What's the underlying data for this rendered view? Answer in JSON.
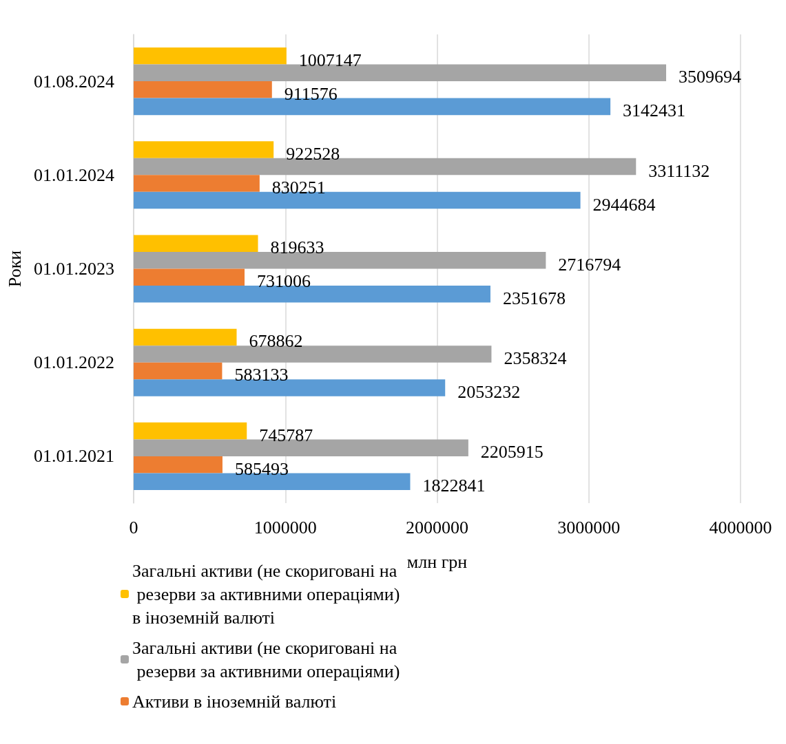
{
  "chart_data": {
    "type": "bar",
    "orientation": "horizontal",
    "xlabel": "млн грн",
    "ylabel": "Роки",
    "categories": [
      "01.08.2024",
      "01.01.2024",
      "01.01.2023",
      "01.01.2022",
      "01.01.2021"
    ],
    "series": [
      {
        "name": "Загальні активи (не скориговані на резерви за активними операціями) в іноземній валюті",
        "color": "#ffc000",
        "values": [
          1007147,
          922528,
          819633,
          678862,
          745787
        ]
      },
      {
        "name": "Загальні активи (не скориговані на резерви за активними операціями)",
        "color": "#a5a5a5",
        "values": [
          3509694,
          3311132,
          2716794,
          2358324,
          2205915
        ]
      },
      {
        "name": "Активи в іноземній валюті",
        "color": "#ed7d31",
        "values": [
          911576,
          830251,
          731006,
          583133,
          585493
        ]
      },
      {
        "color": "#5b9bd5",
        "values": [
          3142431,
          2944684,
          2351678,
          2053232,
          1822841
        ]
      }
    ],
    "xlim": [
      0,
      4000000
    ],
    "xticks": [
      0,
      1000000,
      2000000,
      3000000,
      4000000
    ],
    "grid": "x",
    "legend": "bottom",
    "data_labels": true
  }
}
